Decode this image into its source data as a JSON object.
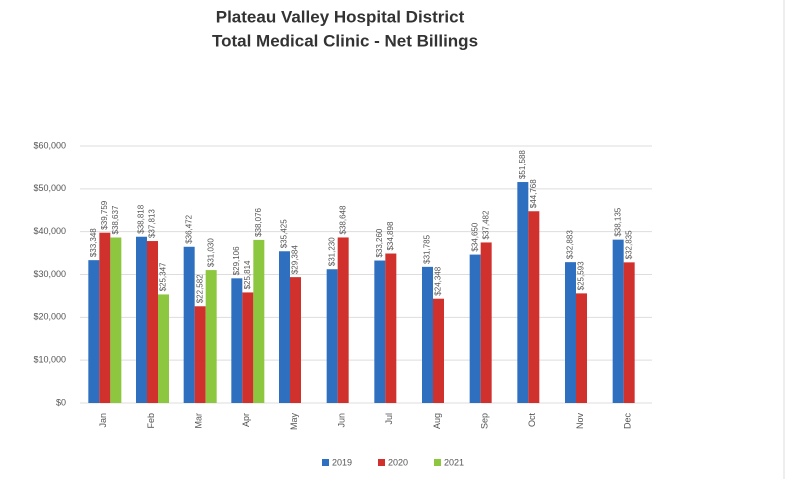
{
  "chart_data": {
    "type": "bar",
    "title": "Plateau Valley Hospital District",
    "subtitle": "Total Medical Clinic  - Net Billings",
    "categories": [
      "Jan",
      "Feb",
      "Mar",
      "Apr",
      "May",
      "Jun",
      "Jul",
      "Aug",
      "Sep",
      "Oct",
      "Nov",
      "Dec"
    ],
    "series": [
      {
        "name": "2019",
        "color": "#2e6fc0",
        "values": [
          33348,
          38818,
          36472,
          29106,
          35425,
          31230,
          33260,
          31785,
          34650,
          51588,
          32883,
          38135
        ],
        "value_labels": [
          "$33,348",
          "$38,818",
          "$36,472",
          "$29,106",
          "$35,425",
          "$31,230",
          "$33,260",
          "$31,785",
          "$34,650",
          "$51,588",
          "$32,883",
          "$38,135"
        ]
      },
      {
        "name": "2020",
        "color": "#d0312d",
        "values": [
          39759,
          37813,
          22582,
          25814,
          29384,
          38648,
          34898,
          24348,
          37482,
          44768,
          25593,
          32835
        ],
        "value_labels": [
          "$39,759",
          "$37,813",
          "$22,582",
          "$25,814",
          "$29,384",
          "$38,648",
          "$34,898",
          "$24,348",
          "$37,482",
          "$44,768",
          "$25,593",
          "$32,835"
        ]
      },
      {
        "name": "2021",
        "color": "#8dc63f",
        "values": [
          38637,
          25347,
          31030,
          38076,
          null,
          null,
          null,
          null,
          null,
          null,
          null,
          null
        ],
        "value_labels": [
          "$38,637",
          "$25,347",
          "$31,030",
          "$38,076",
          null,
          null,
          null,
          null,
          null,
          null,
          null,
          null
        ]
      }
    ],
    "ylim": [
      0,
      60000
    ],
    "yticks": [
      {
        "value": 0,
        "label": "$0"
      },
      {
        "value": 10000,
        "label": "$10,000"
      },
      {
        "value": 20000,
        "label": "$20,000"
      },
      {
        "value": 30000,
        "label": "$30,000"
      },
      {
        "value": 40000,
        "label": "$40,000"
      },
      {
        "value": 50000,
        "label": "$50,000"
      },
      {
        "value": 60000,
        "label": "$60,000"
      }
    ],
    "grid": true,
    "legend": "bottom"
  }
}
